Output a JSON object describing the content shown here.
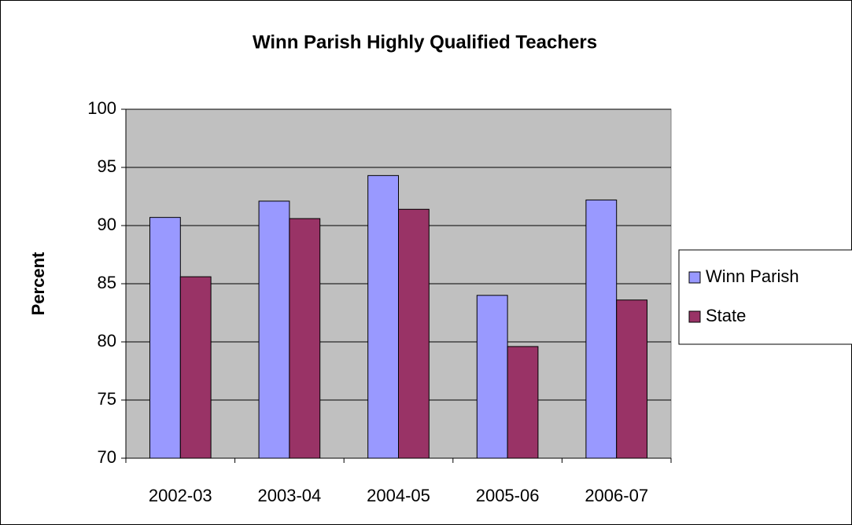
{
  "chart_data": {
    "type": "bar",
    "title": "Winn Parish Highly Qualified Teachers",
    "y_label": "Percent",
    "categories": [
      "2002-03",
      "2003-04",
      "2004-05",
      "2005-06",
      "2006-07"
    ],
    "series": [
      {
        "name": "Winn Parish",
        "color": "#9999ff",
        "values": [
          90.7,
          92.1,
          94.3,
          84.0,
          92.2
        ]
      },
      {
        "name": "State",
        "color": "#993366",
        "values": [
          85.6,
          90.6,
          91.4,
          79.6,
          83.6
        ]
      }
    ],
    "ylim": [
      70,
      100
    ],
    "yticks": [
      70,
      75,
      80,
      85,
      90,
      95,
      100
    ],
    "grid": true,
    "legend": "right",
    "plot_background": "#c0c0c0"
  }
}
